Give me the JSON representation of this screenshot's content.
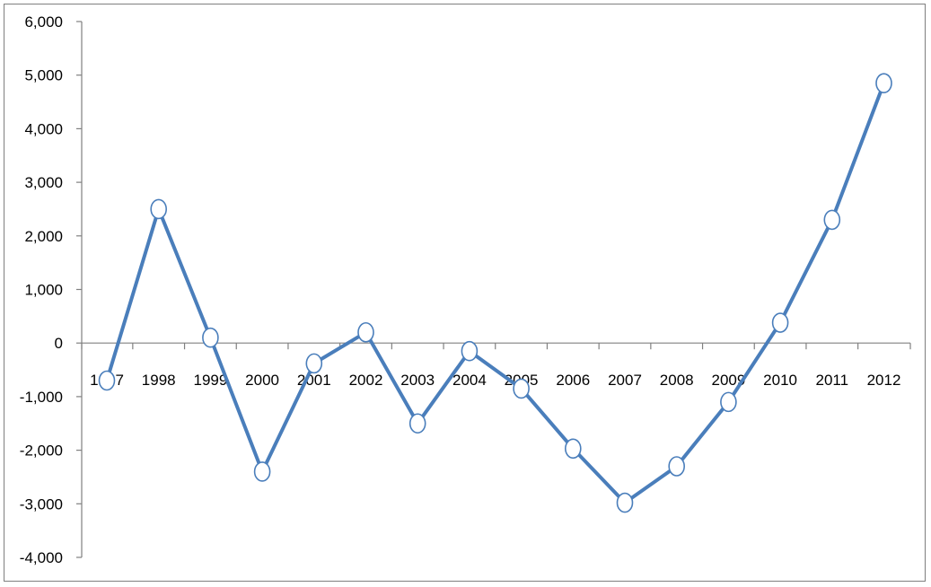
{
  "chart_data": {
    "type": "line",
    "title": "",
    "xlabel": "",
    "ylabel": "",
    "categories": [
      "1997",
      "1998",
      "1999",
      "2000",
      "2001",
      "2002",
      "2003",
      "2004",
      "2005",
      "2006",
      "2007",
      "2008",
      "2009",
      "2010",
      "2011",
      "2012"
    ],
    "series": [
      {
        "values": [
          -700,
          2500,
          100,
          -2400,
          -380,
          200,
          -1500,
          -150,
          -850,
          -1970,
          -2980,
          -2300,
          -1100,
          380,
          2300,
          4850
        ],
        "color": "#4a7ebb",
        "marker": "circle"
      }
    ],
    "ylim": [
      -4000,
      6000
    ],
    "yticks": [
      -4000,
      -3000,
      -2000,
      -1000,
      0,
      1000,
      2000,
      3000,
      4000,
      5000,
      6000
    ],
    "ytick_labels": [
      "-4,000",
      "-3,000",
      "-2,000",
      "-1,000",
      "0",
      "1,000",
      "2,000",
      "3,000",
      "4,000",
      "5,000",
      "6,000"
    ],
    "grid": false,
    "legend": "none"
  }
}
